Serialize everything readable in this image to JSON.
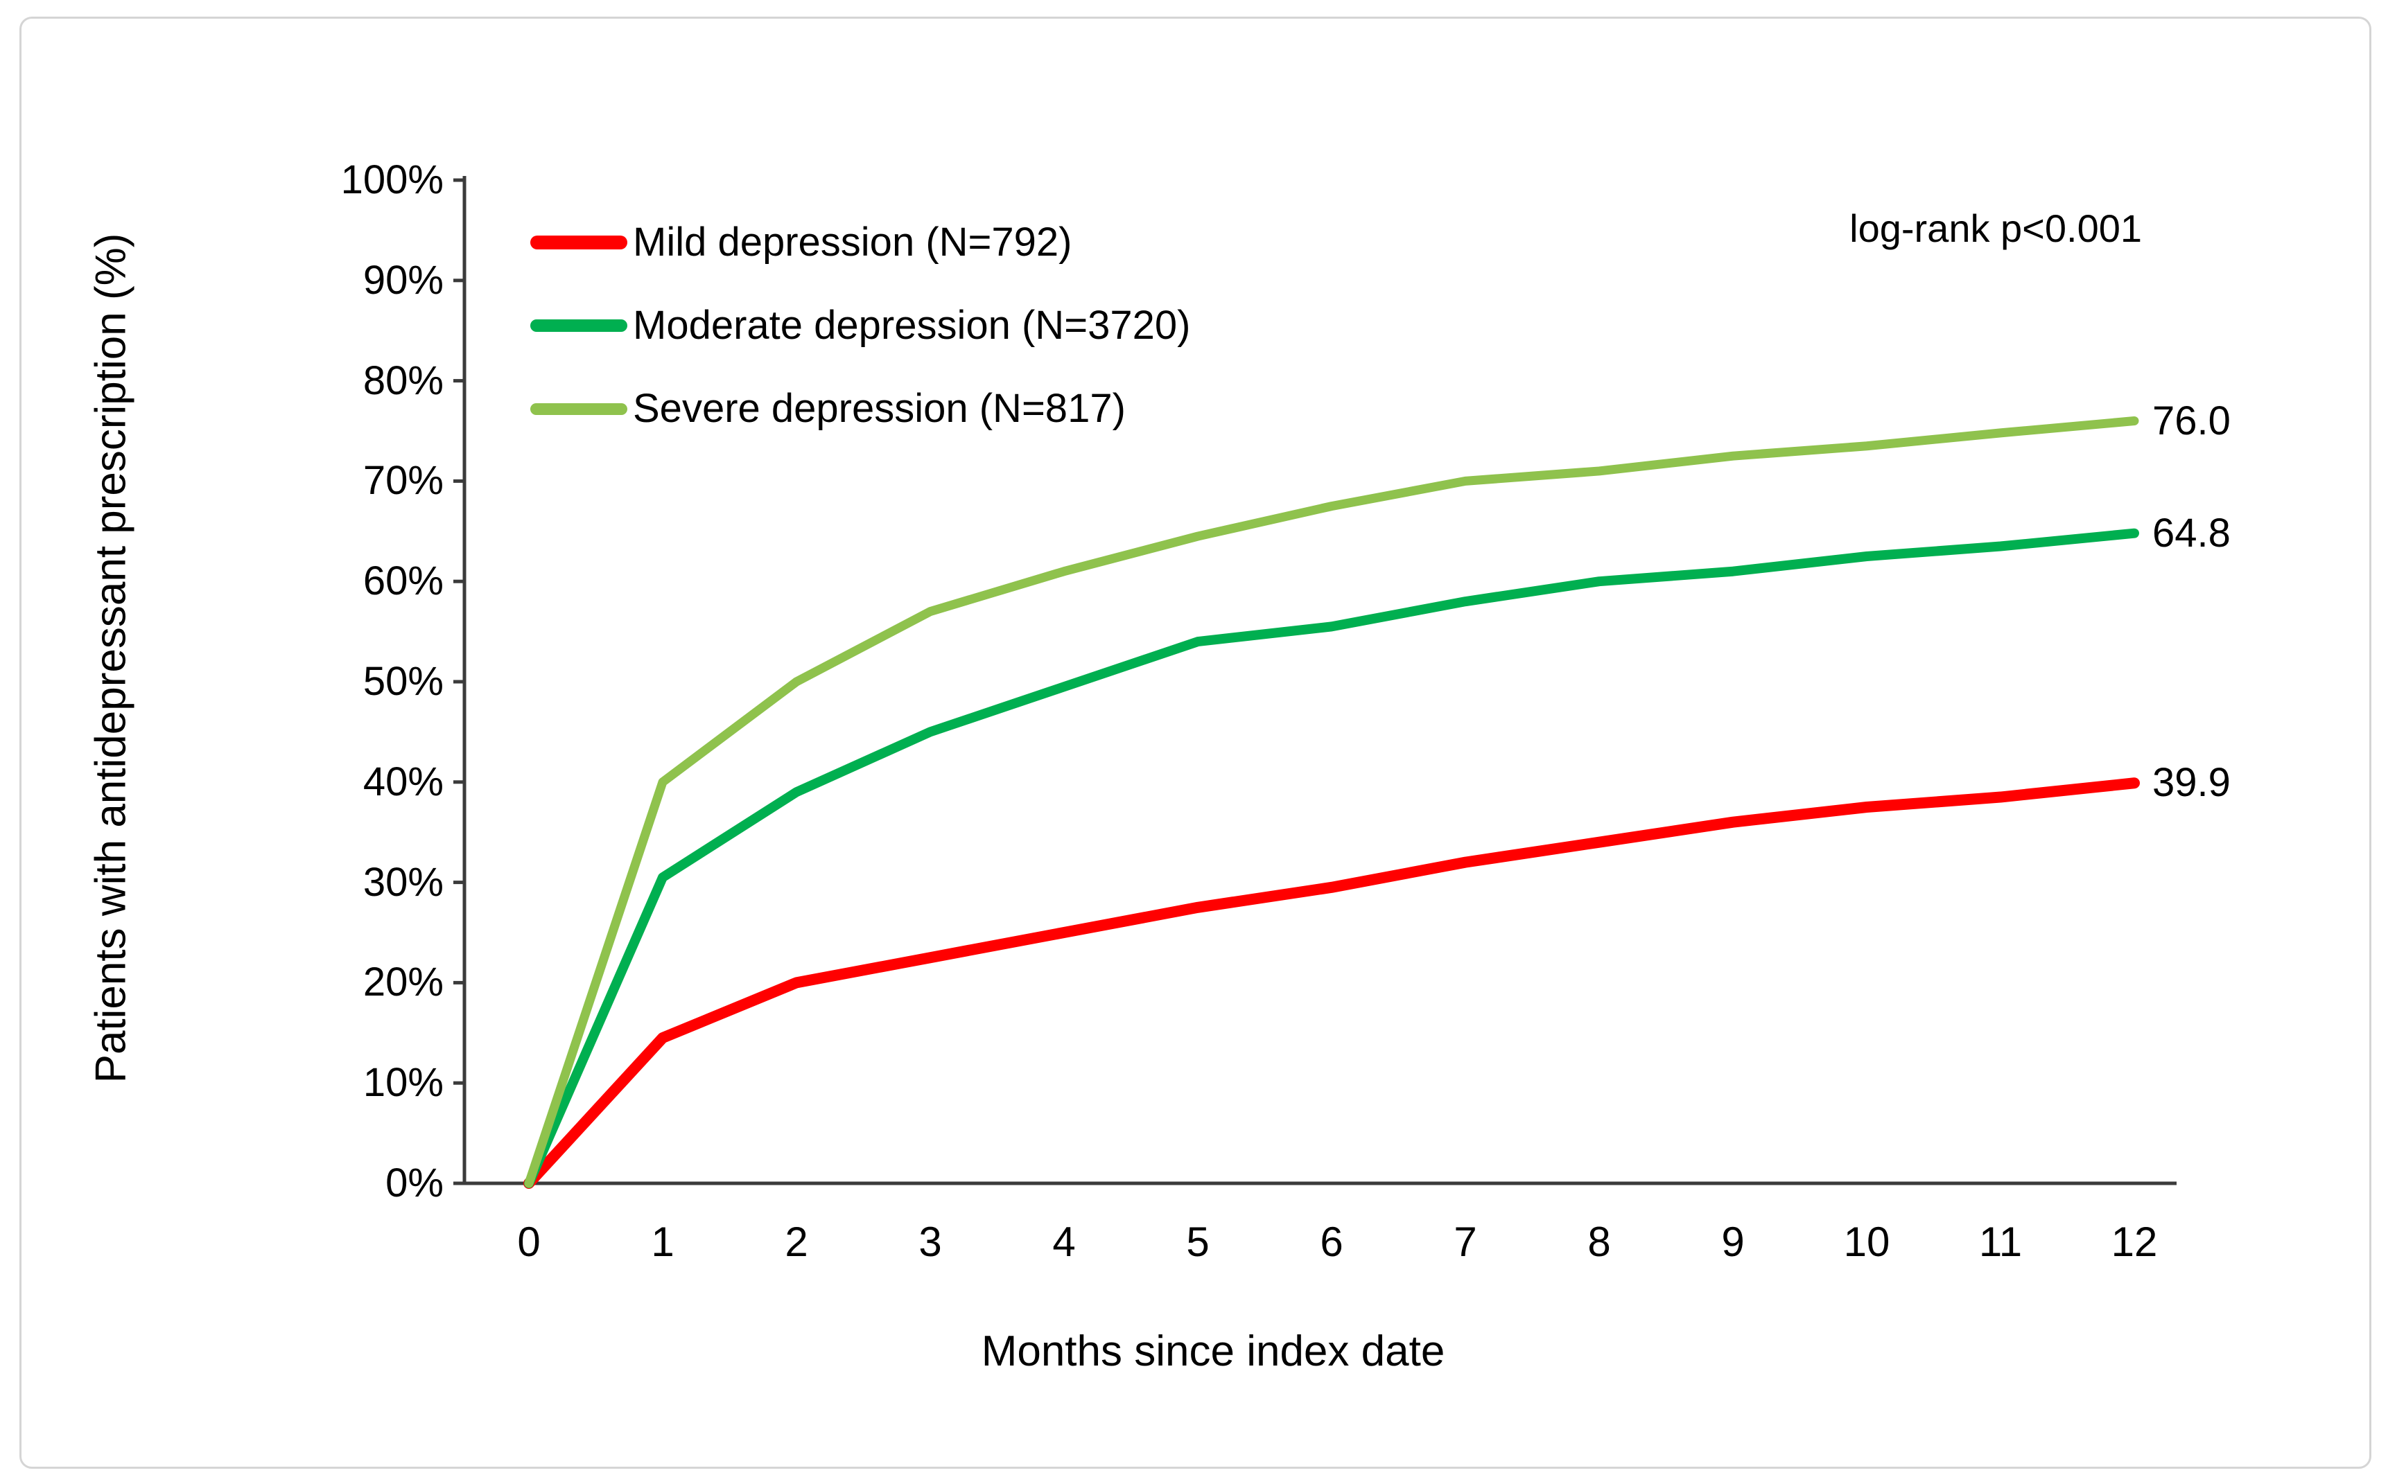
{
  "figure": {
    "background": "#ffffff",
    "border_color": "#d5d5d5",
    "axis_color": "#3b3b3b",
    "text_color": "#000000"
  },
  "annotation": "log-rank p<0.001",
  "y_axis": {
    "title": "Patients with antidepressant prescription (%)",
    "tick_labels": [
      "100%",
      "90%",
      "80%",
      "70%",
      "60%",
      "50%",
      "40%",
      "30%",
      "20%",
      "10%",
      "0%"
    ],
    "min": 0,
    "max": 100,
    "step": 10
  },
  "x_axis": {
    "title": "Months since index date",
    "tick_labels": [
      "0",
      "1",
      "2",
      "3",
      "4",
      "5",
      "6",
      "7",
      "8",
      "9",
      "10",
      "11",
      "12"
    ]
  },
  "legend": {
    "items": [
      {
        "label": "Mild depression (N=792)",
        "color": "#ff0000"
      },
      {
        "label": "Moderate depression (N=3720)",
        "color": "#00af50"
      },
      {
        "label": "Severe depression (N=817)",
        "color": "#8fc24d"
      }
    ]
  },
  "chart_data": {
    "type": "line",
    "x": [
      0,
      1,
      2,
      3,
      4,
      5,
      6,
      7,
      8,
      9,
      10,
      11,
      12
    ],
    "series": [
      {
        "name": "Mild depression (N=792)",
        "color": "#ff0000",
        "width": 16,
        "values": [
          0,
          14.5,
          20,
          22.5,
          25,
          27.5,
          29.5,
          32,
          34,
          36,
          37.5,
          38.5,
          39.9
        ],
        "end_label": "39.9"
      },
      {
        "name": "Moderate depression (N=3720)",
        "color": "#00af50",
        "width": 14,
        "values": [
          0,
          30.5,
          39,
          45,
          49.5,
          54,
          55.5,
          58,
          60,
          61,
          62.5,
          63.5,
          64.8
        ],
        "end_label": "64.8"
      },
      {
        "name": "Severe depression (N=817)",
        "color": "#8fc24d",
        "width": 13,
        "values": [
          0,
          40,
          50,
          57,
          61,
          64.5,
          67.5,
          70,
          71,
          72.5,
          73.5,
          74.8,
          76.0
        ],
        "end_label": "76.0"
      }
    ],
    "xlabel": "Months since index date",
    "ylabel": "Patients with antidepressant prescription (%)",
    "ylim": [
      0,
      100
    ],
    "xlim": [
      0,
      12
    ],
    "grid": false,
    "legend_position": "top-left-inside",
    "annotation": "log-rank p<0.001"
  }
}
